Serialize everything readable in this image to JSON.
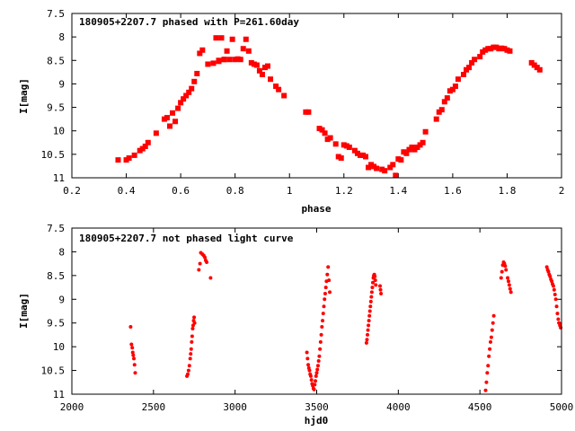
{
  "chart_data": [
    {
      "type": "scatter",
      "title": "180905+2207.7 phased with P=261.60day",
      "xlabel": "phase",
      "ylabel": "I[mag]",
      "xlim": [
        0.2,
        2.0
      ],
      "ylim": [
        7.5,
        11.0
      ],
      "y_inverted": true,
      "marker": "square",
      "color": "#ff0000",
      "xticks": [
        "0.2",
        "0.4",
        "0.6",
        "0.8",
        "1",
        "1.2",
        "1.4",
        "1.6",
        "1.8",
        "2"
      ],
      "xtick_values": [
        0.2,
        0.4,
        0.6,
        0.8,
        1.0,
        1.2,
        1.4,
        1.6,
        1.8,
        2.0
      ],
      "yticks": [
        "7.5",
        "8",
        "8.5",
        "9",
        "9.5",
        "10",
        "10.5",
        "11"
      ],
      "ytick_values": [
        7.5,
        8,
        8.5,
        9,
        9.5,
        10,
        10.5,
        11
      ],
      "x": [
        0.37,
        0.4,
        0.41,
        0.43,
        0.45,
        0.46,
        0.47,
        0.48,
        0.51,
        0.54,
        0.55,
        0.56,
        0.57,
        0.58,
        0.59,
        0.6,
        0.61,
        0.62,
        0.63,
        0.64,
        0.65,
        0.66,
        0.67,
        0.68,
        0.7,
        0.72,
        0.73,
        0.74,
        0.74,
        0.75,
        0.76,
        0.76,
        0.77,
        0.78,
        0.79,
        0.8,
        0.81,
        0.82,
        0.83,
        0.84,
        0.85,
        0.86,
        0.87,
        0.88,
        0.89,
        0.9,
        0.91,
        0.92,
        0.93,
        0.95,
        0.96,
        0.98,
        1.06,
        1.07,
        1.11,
        1.12,
        1.13,
        1.14,
        1.15,
        1.17,
        1.18,
        1.19,
        1.2,
        1.21,
        1.22,
        1.24,
        1.25,
        1.26,
        1.27,
        1.28,
        1.29,
        1.3,
        1.31,
        1.32,
        1.34,
        1.35,
        1.37,
        1.38,
        1.39,
        1.4,
        1.41,
        1.42,
        1.43,
        1.44,
        1.45,
        1.46,
        1.47,
        1.48,
        1.49,
        1.5,
        1.54,
        1.55,
        1.56,
        1.57,
        1.58,
        1.59,
        1.6,
        1.61,
        1.62,
        1.64,
        1.65,
        1.66,
        1.67,
        1.68,
        1.7,
        1.71,
        1.72,
        1.73,
        1.74,
        1.75,
        1.76,
        1.77,
        1.78,
        1.79,
        1.8,
        1.81,
        1.89,
        1.9,
        1.91,
        1.92
      ],
      "y": [
        10.62,
        10.62,
        10.58,
        10.52,
        10.42,
        10.38,
        10.33,
        10.25,
        10.05,
        9.75,
        9.72,
        9.9,
        9.62,
        9.8,
        9.52,
        9.4,
        9.32,
        9.25,
        9.18,
        9.1,
        8.95,
        8.78,
        8.35,
        8.28,
        8.58,
        8.56,
        8.02,
        8.5,
        8.52,
        8.02,
        8.48,
        8.48,
        8.3,
        8.48,
        8.05,
        8.48,
        8.47,
        8.48,
        8.25,
        8.05,
        8.3,
        8.55,
        8.58,
        8.6,
        8.72,
        8.8,
        8.65,
        8.62,
        8.9,
        9.05,
        9.12,
        9.25,
        9.6,
        9.6,
        9.95,
        9.98,
        10.05,
        10.18,
        10.15,
        10.28,
        10.55,
        10.58,
        10.3,
        10.32,
        10.35,
        10.42,
        10.48,
        10.52,
        10.52,
        10.55,
        10.78,
        10.72,
        10.76,
        10.8,
        10.82,
        10.85,
        10.78,
        10.72,
        10.95,
        10.6,
        10.62,
        10.45,
        10.48,
        10.4,
        10.35,
        10.4,
        10.35,
        10.3,
        10.25,
        10.02,
        9.75,
        9.6,
        9.55,
        9.38,
        9.3,
        9.15,
        9.12,
        9.05,
        8.9,
        8.8,
        8.7,
        8.65,
        8.55,
        8.48,
        8.42,
        8.32,
        8.28,
        8.25,
        8.25,
        8.22,
        8.22,
        8.25,
        8.24,
        8.25,
        8.28,
        8.3,
        8.55,
        8.6,
        8.65,
        8.7
      ]
    },
    {
      "type": "scatter",
      "title": "180905+2207.7 not phased light curve",
      "xlabel": "hjd0",
      "ylabel": "I[mag]",
      "xlim": [
        2000,
        5000
      ],
      "ylim": [
        7.5,
        11.0
      ],
      "y_inverted": true,
      "marker": "dot",
      "color": "#ff0000",
      "xticks": [
        "2000",
        "2500",
        "3000",
        "3500",
        "4000",
        "4500",
        "5000"
      ],
      "xtick_values": [
        2000,
        2500,
        3000,
        3500,
        4000,
        4500,
        5000
      ],
      "yticks": [
        "7.5",
        "8",
        "8.5",
        "9",
        "9.5",
        "10",
        "10.5",
        "11"
      ],
      "ytick_values": [
        7.5,
        8,
        8.5,
        9,
        9.5,
        10,
        10.5,
        11
      ],
      "x": [
        2360,
        2365,
        2370,
        2373,
        2376,
        2380,
        2384,
        2388,
        2705,
        2710,
        2715,
        2720,
        2725,
        2728,
        2731,
        2734,
        2737,
        2740,
        2743,
        2746,
        2749,
        2752,
        2778,
        2785,
        2790,
        2800,
        2808,
        2815,
        2820,
        2826,
        2850,
        3440,
        3444,
        3448,
        3452,
        3456,
        3460,
        3464,
        3468,
        3472,
        3476,
        3480,
        3484,
        3488,
        3492,
        3496,
        3500,
        3504,
        3508,
        3512,
        3516,
        3520,
        3524,
        3528,
        3532,
        3536,
        3540,
        3544,
        3548,
        3552,
        3556,
        3560,
        3565,
        3570,
        3575,
        3580,
        3805,
        3808,
        3811,
        3814,
        3817,
        3820,
        3823,
        3826,
        3829,
        3832,
        3835,
        3838,
        3841,
        3844,
        3847,
        3850,
        3853,
        3856,
        3859,
        3862,
        3888,
        3891,
        3894,
        4535,
        4540,
        4545,
        4550,
        4555,
        4560,
        4565,
        4570,
        4575,
        4580,
        4585,
        4630,
        4635,
        4640,
        4645,
        4650,
        4655,
        4660,
        4670,
        4675,
        4680,
        4685,
        4690,
        4910,
        4915,
        4920,
        4925,
        4930,
        4935,
        4940,
        4945,
        4950,
        4955,
        4960,
        4965,
        4970,
        4975,
        4980,
        4985,
        4990,
        4995
      ],
      "y": [
        9.58,
        9.95,
        10.02,
        10.12,
        10.18,
        10.25,
        10.38,
        10.55,
        10.62,
        10.58,
        10.5,
        10.4,
        10.25,
        10.15,
        10.05,
        9.9,
        9.78,
        9.62,
        9.55,
        9.45,
        9.38,
        9.5,
        8.38,
        8.25,
        8.02,
        8.05,
        8.08,
        8.12,
        8.18,
        8.22,
        8.55,
        10.12,
        10.25,
        10.38,
        10.45,
        10.5,
        10.58,
        10.62,
        10.7,
        10.78,
        10.82,
        10.88,
        10.9,
        10.8,
        10.72,
        10.62,
        10.55,
        10.48,
        10.4,
        10.3,
        10.2,
        10.05,
        9.9,
        9.75,
        9.58,
        9.45,
        9.3,
        9.15,
        9.0,
        8.88,
        8.75,
        8.62,
        8.48,
        8.32,
        8.6,
        8.85,
        9.92,
        9.85,
        9.75,
        9.65,
        9.55,
        9.45,
        9.35,
        9.25,
        9.15,
        9.05,
        8.95,
        8.85,
        8.75,
        8.65,
        8.55,
        8.5,
        8.48,
        8.52,
        8.6,
        8.7,
        8.72,
        8.8,
        8.88,
        10.92,
        10.75,
        10.55,
        10.4,
        10.2,
        10.05,
        9.9,
        9.8,
        9.65,
        9.5,
        9.35,
        8.55,
        8.42,
        8.28,
        8.22,
        8.25,
        8.3,
        8.38,
        8.55,
        8.62,
        8.7,
        8.78,
        8.85,
        8.32,
        8.38,
        8.42,
        8.48,
        8.52,
        8.58,
        8.62,
        8.68,
        8.72,
        8.8,
        8.9,
        9.0,
        9.15,
        9.3,
        9.42,
        9.5,
        9.55,
        9.6
      ]
    }
  ]
}
